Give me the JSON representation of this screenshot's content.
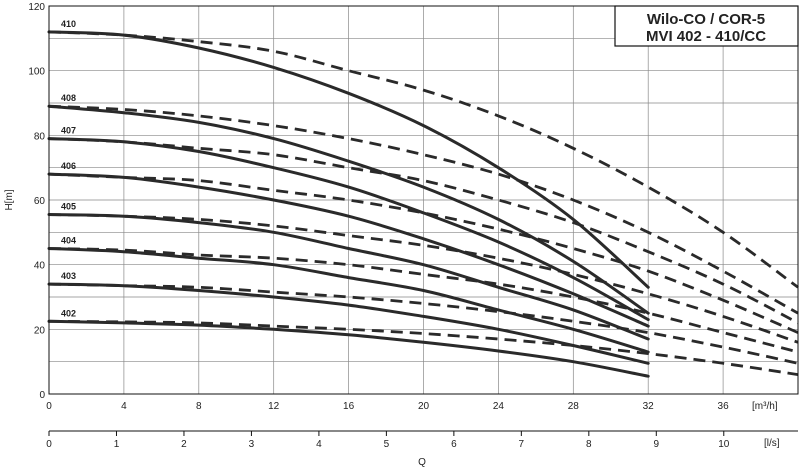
{
  "chart_data": {
    "type": "line",
    "title_line1": "Wilo-CO / COR-5",
    "title_line2": "MVI 402 - 410/CC",
    "ylabel": "H[m]",
    "xlabel": "Q",
    "x_unit_top": "[m³/h]",
    "x_unit_bottom": "[l/s]",
    "xlim": [
      0,
      40
    ],
    "ylim": [
      0,
      120
    ],
    "x_ticks": [
      "0",
      "4",
      "8",
      "12",
      "16",
      "20",
      "24",
      "28",
      "32",
      "36"
    ],
    "x_tick_values": [
      0,
      4,
      8,
      12,
      16,
      20,
      24,
      28,
      32,
      36
    ],
    "y_ticks": [
      "0",
      "20",
      "40",
      "60",
      "80",
      "100",
      "120"
    ],
    "y_tick_values": [
      0,
      20,
      40,
      60,
      80,
      100,
      120
    ],
    "ls_ticks": [
      "0",
      "1",
      "2",
      "3",
      "4",
      "5",
      "6",
      "7",
      "8",
      "9",
      "10"
    ],
    "ls_tick_values": [
      0,
      1,
      2,
      3,
      4,
      5,
      6,
      7,
      8,
      9,
      10
    ],
    "ls_xlim": [
      0,
      11.1
    ],
    "grid": true,
    "series": [
      {
        "name": "410",
        "solid": {
          "x": [
            0,
            4,
            8,
            12,
            16,
            20,
            24,
            28,
            32
          ],
          "y": [
            112,
            111,
            107,
            101,
            93,
            83,
            70,
            54,
            33
          ]
        },
        "dashed": {
          "x": [
            0,
            4,
            8,
            12,
            16,
            20,
            24,
            28,
            32,
            36,
            40
          ],
          "y": [
            112,
            111,
            109,
            106,
            100,
            94,
            86,
            76,
            64,
            50,
            33
          ]
        }
      },
      {
        "name": "408",
        "solid": {
          "x": [
            0,
            4,
            8,
            12,
            16,
            20,
            24,
            28,
            32
          ],
          "y": [
            89,
            87,
            84,
            79,
            72,
            64,
            54,
            41,
            25
          ]
        },
        "dashed": {
          "x": [
            0,
            4,
            8,
            12,
            16,
            20,
            24,
            28,
            32,
            36,
            40
          ],
          "y": [
            89,
            88,
            86,
            83,
            79,
            74,
            68,
            60,
            50,
            38,
            25
          ]
        }
      },
      {
        "name": "407",
        "solid": {
          "x": [
            0,
            4,
            8,
            12,
            16,
            20,
            24,
            28,
            32
          ],
          "y": [
            79,
            78,
            75,
            70,
            64,
            56,
            47,
            36,
            23
          ]
        },
        "dashed": {
          "x": [
            0,
            4,
            8,
            12,
            16,
            20,
            24,
            28,
            32,
            36,
            40
          ],
          "y": [
            79,
            78,
            76,
            74,
            70,
            66,
            60,
            53,
            44,
            34,
            22
          ]
        }
      },
      {
        "name": "406",
        "solid": {
          "x": [
            0,
            4,
            8,
            12,
            16,
            20,
            24,
            28,
            32
          ],
          "y": [
            68,
            67,
            64,
            60,
            55,
            48,
            40,
            31,
            21
          ]
        },
        "dashed": {
          "x": [
            0,
            4,
            8,
            12,
            16,
            20,
            24,
            28,
            32,
            36,
            40
          ],
          "y": [
            68,
            67,
            66,
            63,
            60,
            56,
            51,
            45,
            38,
            29,
            19
          ]
        }
      },
      {
        "name": "405",
        "solid": {
          "x": [
            0,
            4,
            8,
            12,
            16,
            20,
            24,
            28,
            32
          ],
          "y": [
            55.5,
            55,
            53,
            50,
            45,
            40,
            33,
            26,
            17
          ]
        },
        "dashed": {
          "x": [
            0,
            4,
            8,
            12,
            16,
            20,
            24,
            28,
            32,
            36,
            40
          ],
          "y": [
            55.5,
            55,
            54,
            52,
            49,
            46,
            42,
            37,
            31,
            24,
            16
          ]
        }
      },
      {
        "name": "404",
        "solid": {
          "x": [
            0,
            4,
            8,
            12,
            16,
            20,
            24,
            28,
            32
          ],
          "y": [
            45,
            44,
            42,
            40,
            36,
            32,
            26,
            20,
            13
          ]
        },
        "dashed": {
          "x": [
            0,
            4,
            8,
            12,
            16,
            20,
            24,
            28,
            32,
            36,
            40
          ],
          "y": [
            45,
            44.5,
            43,
            42,
            40,
            37,
            34,
            30,
            25,
            19,
            13
          ]
        }
      },
      {
        "name": "403",
        "solid": {
          "x": [
            0,
            4,
            8,
            12,
            16,
            20,
            24,
            28,
            32
          ],
          "y": [
            34,
            33.5,
            32,
            30,
            27.5,
            24,
            20,
            15,
            9.5
          ]
        },
        "dashed": {
          "x": [
            0,
            4,
            8,
            12,
            16,
            20,
            24,
            28,
            32,
            36,
            40
          ],
          "y": [
            34,
            33.5,
            33,
            31.5,
            30,
            28,
            25.5,
            22.5,
            19,
            14.5,
            9.5
          ]
        }
      },
      {
        "name": "402",
        "solid": {
          "x": [
            0,
            4,
            8,
            12,
            16,
            20,
            24,
            28,
            32
          ],
          "y": [
            22.5,
            22,
            21.3,
            20,
            18.3,
            16,
            13.3,
            10,
            5.5
          ]
        },
        "dashed": {
          "x": [
            0,
            4,
            8,
            12,
            16,
            20,
            24,
            28,
            32,
            36,
            40
          ],
          "y": [
            22.5,
            22.3,
            22,
            21,
            20,
            18.7,
            17,
            15,
            12.5,
            9.5,
            6
          ]
        }
      }
    ]
  }
}
